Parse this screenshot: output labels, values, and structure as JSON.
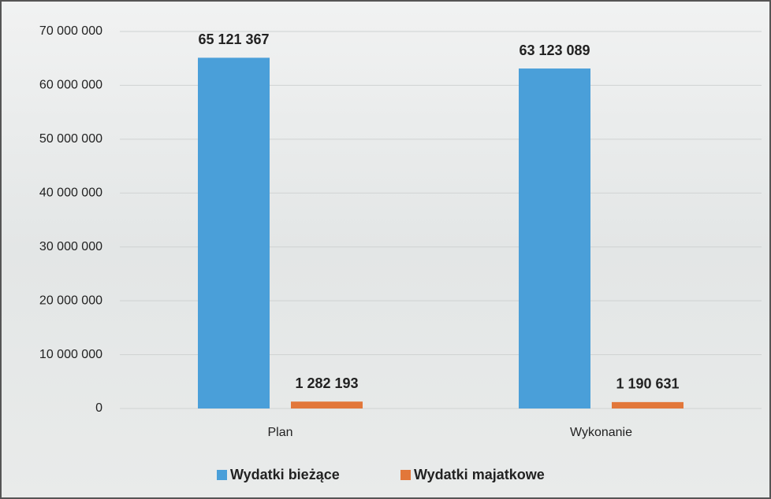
{
  "chart_data": {
    "type": "bar",
    "categories": [
      "Plan",
      "Wykonanie"
    ],
    "series": [
      {
        "name": "Wydatki bieżące",
        "color": "#4a9fd9",
        "values": [
          65121367,
          63123089
        ],
        "value_labels": [
          "65 121 367",
          "63 123 089"
        ]
      },
      {
        "name": "Wydatki majatkowe",
        "color": "#e2773a",
        "values": [
          1282193,
          1190631
        ],
        "value_labels": [
          "1 282 193",
          "1 190 631"
        ]
      }
    ],
    "ylim": [
      0,
      70000000
    ],
    "yticks": [
      0,
      {
        "value": 10000000,
        "label": "10 000 000"
      },
      {
        "value": 20000000,
        "label": "20 000 000"
      },
      {
        "value": 30000000,
        "label": "30 000 000"
      },
      {
        "value": 40000000,
        "label": "40 000 000"
      },
      {
        "value": 50000000,
        "label": "50 000 000"
      },
      {
        "value": 60000000,
        "label": "60 000 000"
      },
      {
        "value": 70000000,
        "label": "70 000 000"
      }
    ],
    "grid": true,
    "legend": "bottom"
  }
}
